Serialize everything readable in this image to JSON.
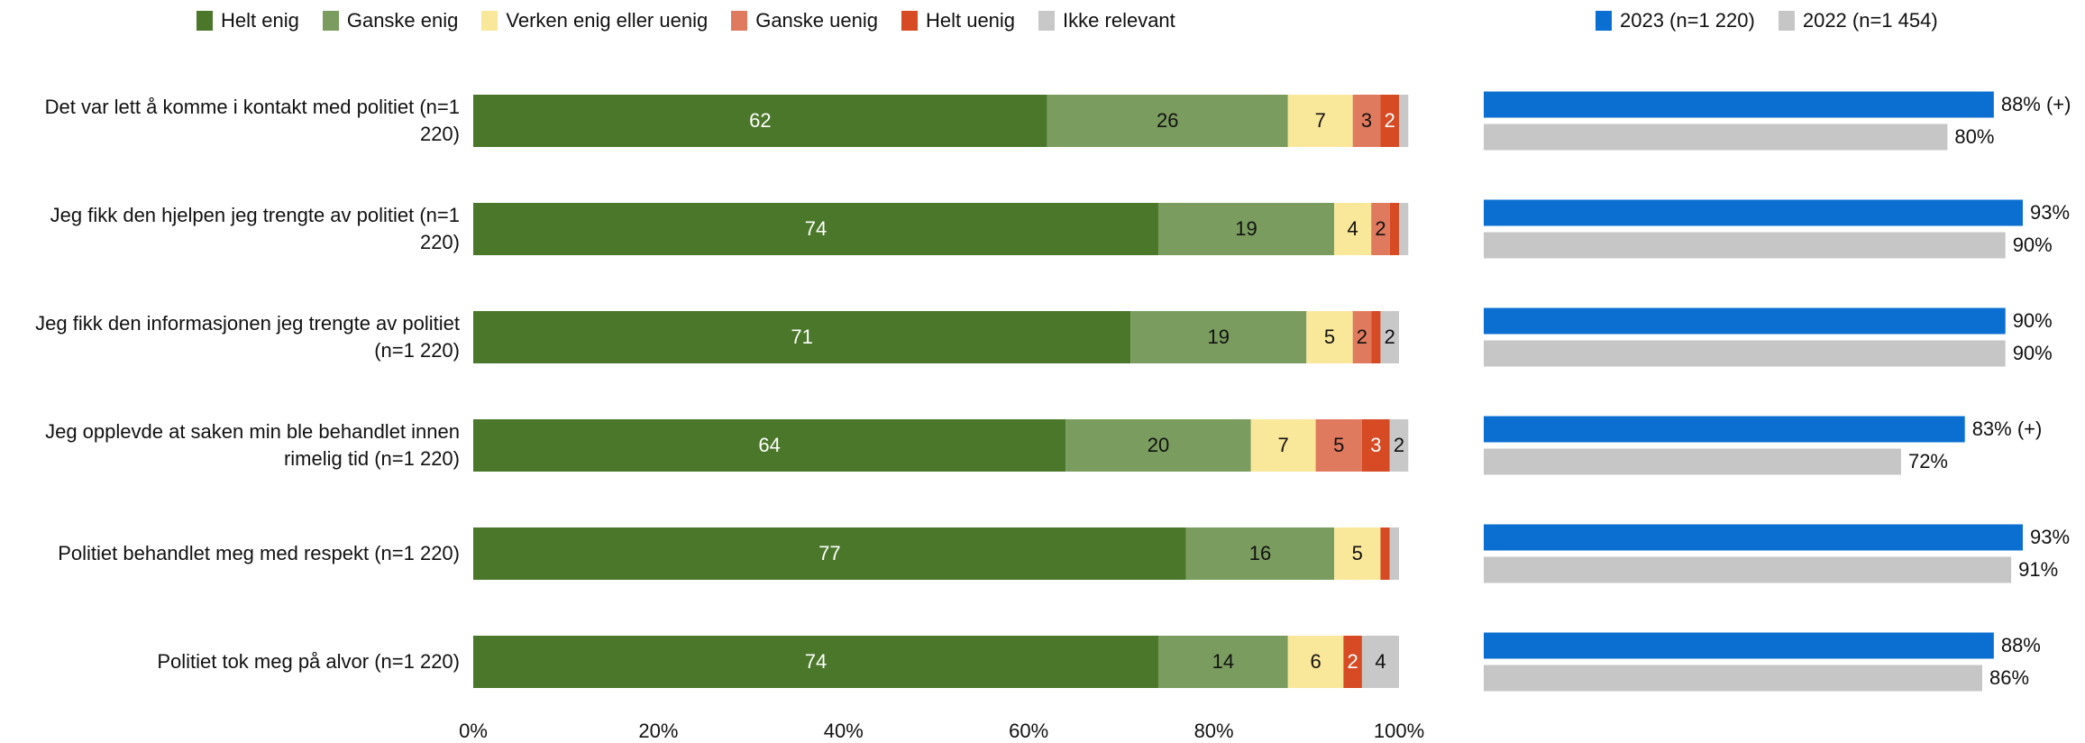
{
  "chart_data": [
    {
      "type": "stacked-bar",
      "categories": [
        "Det var lett å komme i kontakt med politiet (n=1 220)",
        "Jeg fikk den hjelpen jeg trengte av politiet (n=1 220)",
        "Jeg fikk den informasjonen jeg trengte av politiet (n=1 220)",
        "Jeg opplevde at saken min ble behandlet innen rimelig tid (n=1 220)",
        "Politiet behandlet meg med respekt (n=1 220)",
        "Politiet tok meg på alvor (n=1 220)"
      ],
      "series": [
        {
          "name": "Helt enig",
          "color": "#4a7729",
          "values": [
            62,
            74,
            71,
            64,
            77,
            74
          ]
        },
        {
          "name": "Ganske enig",
          "color": "#7a9c5f",
          "values": [
            26,
            19,
            19,
            20,
            16,
            14
          ]
        },
        {
          "name": "Verken enig eller uenig",
          "color": "#f9e79a",
          "values": [
            7,
            4,
            5,
            7,
            5,
            6
          ]
        },
        {
          "name": "Ganske uenig",
          "color": "#e07a5f",
          "values": [
            3,
            2,
            2,
            5,
            0,
            0
          ]
        },
        {
          "name": "Helt uenig",
          "color": "#d64a24",
          "values": [
            2,
            1,
            1,
            3,
            1,
            2
          ]
        },
        {
          "name": "Ikke relevant",
          "color": "#c8c8c8",
          "values": [
            1,
            1,
            2,
            2,
            1,
            4
          ]
        }
      ],
      "xlim": [
        0,
        100
      ],
      "xticks": [
        {
          "value": 0,
          "label": "0%"
        },
        {
          "value": 20,
          "label": "20%"
        },
        {
          "value": 40,
          "label": "40%"
        },
        {
          "value": 60,
          "label": "60%"
        },
        {
          "value": 80,
          "label": "80%"
        },
        {
          "value": 100,
          "label": "100%"
        }
      ]
    },
    {
      "type": "grouped-bar",
      "series": [
        {
          "name": "2023 (n=1 220)",
          "color": "#0a6fd1",
          "values": [
            88,
            93,
            90,
            83,
            93,
            88
          ],
          "value_labels": [
            "88% (+)",
            "93%",
            "90%",
            "83% (+)",
            "93%",
            "88%"
          ]
        },
        {
          "name": "2022 (n=1 454)",
          "color": "#c6c6c6",
          "values": [
            80,
            90,
            90,
            72,
            91,
            86
          ],
          "value_labels": [
            "80%",
            "90%",
            "90%",
            "72%",
            "91%",
            "86%"
          ]
        }
      ],
      "xlim": [
        0,
        100
      ]
    }
  ]
}
